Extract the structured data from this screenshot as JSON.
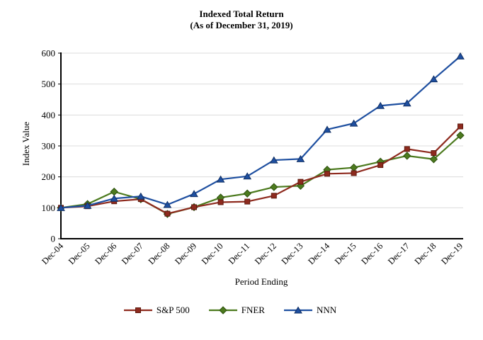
{
  "title": {
    "line1": "Indexed Total Return",
    "line2": "(As of December 31, 2019)"
  },
  "y_axis": {
    "title": "Index Value"
  },
  "x_axis": {
    "title": "Period Ending"
  },
  "chart_data": {
    "type": "line",
    "title": "Indexed Total Return",
    "subtitle": "(As of December 31, 2019)",
    "xlabel": "Period Ending",
    "ylabel": "Index Value",
    "ylim": [
      0,
      600
    ],
    "yticks": [
      0,
      100,
      200,
      300,
      400,
      500,
      600
    ],
    "grid": true,
    "legend_position": "bottom",
    "axis_color": "#000000",
    "grid_color": "#DCDCDC",
    "categories": [
      "Dec-04",
      "Dec-05",
      "Dec-06",
      "Dec-07",
      "Dec-08",
      "Dec-09",
      "Dec-10",
      "Dec-11",
      "Dec-12",
      "Dec-13",
      "Dec-14",
      "Dec-15",
      "Dec-16",
      "Dec-17",
      "Dec-18",
      "Dec-19"
    ],
    "series": [
      {
        "name": "S&P 500",
        "marker": "square",
        "color": "#8E2A1E",
        "edge": "#5E1B10",
        "values": [
          100,
          105,
          121,
          128,
          81,
          102,
          118,
          120,
          139,
          184,
          210,
          212,
          238,
          290,
          277,
          363
        ]
      },
      {
        "name": "FNER",
        "marker": "diamond",
        "color": "#4C7A1E",
        "edge": "#2F5210",
        "values": [
          100,
          112,
          152,
          128,
          80,
          102,
          133,
          146,
          167,
          171,
          223,
          230,
          249,
          268,
          257,
          334
        ]
      },
      {
        "name": "NNN",
        "marker": "triangle",
        "color": "#1E4FA0",
        "edge": "#123064",
        "values": [
          100,
          107,
          130,
          137,
          110,
          145,
          192,
          202,
          254,
          258,
          353,
          373,
          430,
          438,
          516,
          590
        ]
      }
    ],
    "z_order": [
      1,
      0,
      2
    ]
  }
}
